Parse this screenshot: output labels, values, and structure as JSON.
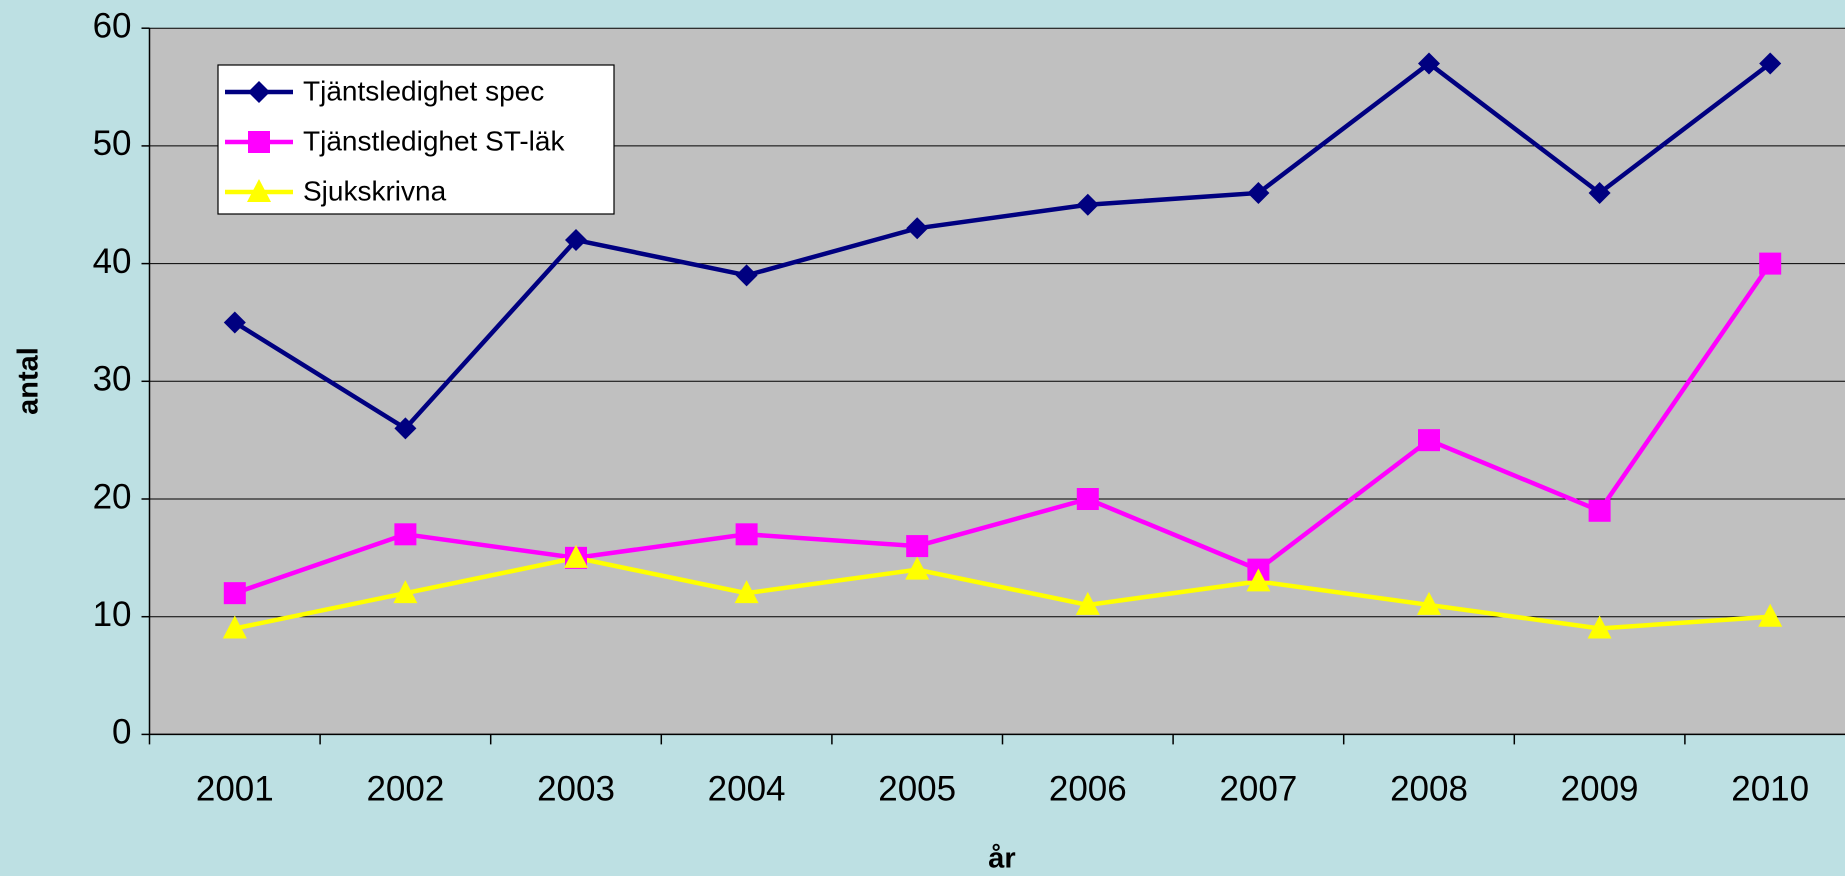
{
  "chart_data": {
    "type": "line",
    "xlabel": "år",
    "ylabel": "antal",
    "categories": [
      "2001",
      "2002",
      "2003",
      "2004",
      "2005",
      "2006",
      "2007",
      "2008",
      "2009",
      "2010"
    ],
    "series": [
      {
        "name": "Tjäntsledighet spec",
        "color": "#000080",
        "marker": "diamond",
        "values": [
          35,
          26,
          42,
          39,
          43,
          45,
          46,
          57,
          46,
          57
        ]
      },
      {
        "name": "Tjänstledighet ST-läk",
        "color": "#ff00ff",
        "marker": "square",
        "values": [
          12,
          17,
          15,
          17,
          16,
          20,
          14,
          25,
          19,
          40
        ]
      },
      {
        "name": "Sjukskrivna",
        "color": "#ffff00",
        "marker": "triangle",
        "values": [
          9,
          12,
          15,
          12,
          14,
          11,
          13,
          11,
          9,
          10
        ]
      }
    ],
    "ylim": [
      0,
      60
    ],
    "yticks": [
      0,
      10,
      20,
      30,
      40,
      50,
      60
    ],
    "grid": true,
    "legend": "upper left"
  }
}
